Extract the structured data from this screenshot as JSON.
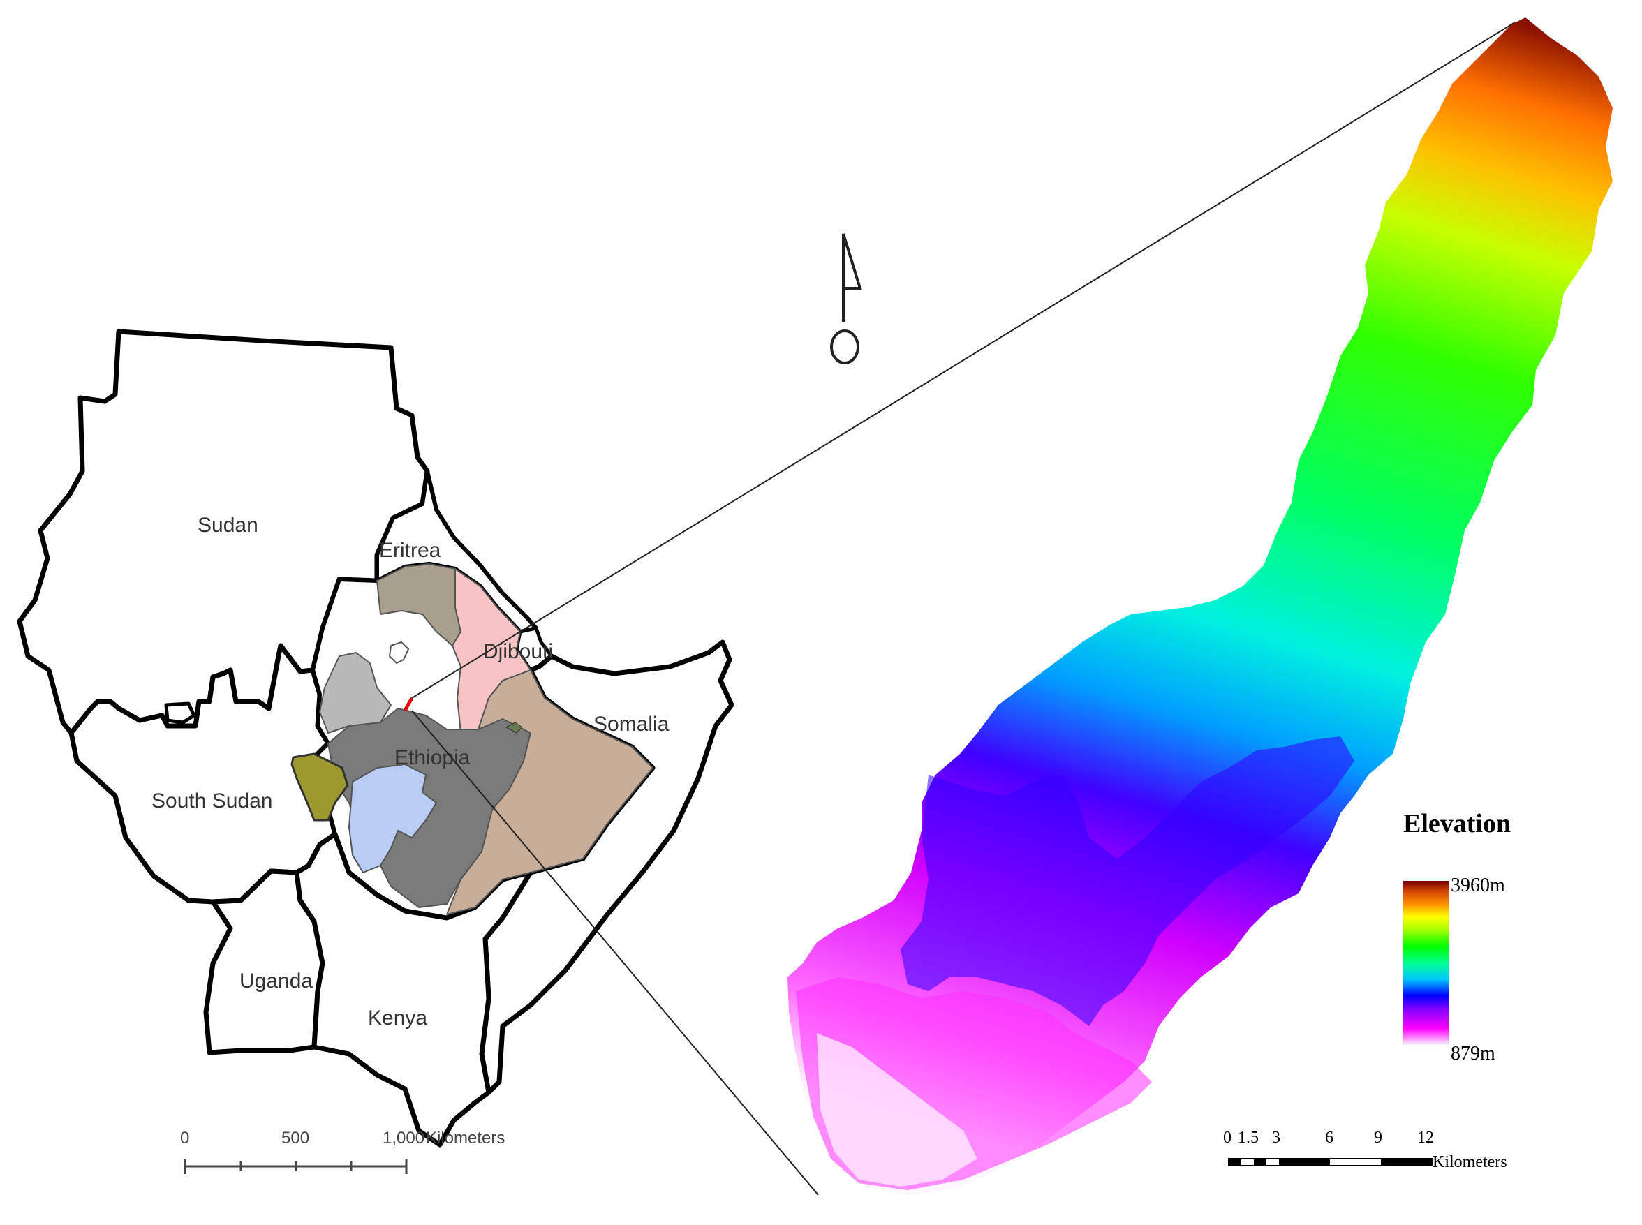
{
  "regional_map": {
    "countries": [
      {
        "id": "sudan",
        "label": "Sudan"
      },
      {
        "id": "eritrea",
        "label": "Eritrea"
      },
      {
        "id": "djibouti",
        "label": "Djibouti"
      },
      {
        "id": "somalia",
        "label": "Somalia"
      },
      {
        "id": "ethiopia",
        "label": "Ethiopia"
      },
      {
        "id": "south-sudan",
        "label": "South Sudan"
      },
      {
        "id": "uganda",
        "label": "Uganda"
      },
      {
        "id": "kenya",
        "label": "Kenya"
      }
    ],
    "scale_bar": {
      "ticks": [
        "0",
        "500",
        "1,000"
      ],
      "unit": "Kilometers"
    }
  },
  "elevation_map": {
    "legend": {
      "title": "Elevation",
      "max_label": "3960m",
      "min_label": "879m",
      "max_m": 3960,
      "min_m": 879
    },
    "scale_bar": {
      "ticks": [
        "0",
        "1.5",
        "3",
        "6",
        "9",
        "12"
      ],
      "unit": "Kilometers"
    },
    "colors": {
      "ramp": [
        "#f8f0ff",
        "#ff00ff",
        "#8000ff",
        "#0000ff",
        "#00c8ff",
        "#00ffa0",
        "#00ff00",
        "#a0ff00",
        "#ffff00",
        "#ff9000",
        "#d04000",
        "#700000"
      ]
    }
  },
  "colors": {
    "region_taupe": "#a89f8e",
    "region_pink": "#f7c4c6",
    "region_lightgray": "#b9b9b9",
    "region_darkgray": "#7a7a7a",
    "region_olive": "#9c9a2e",
    "region_lightblue": "#b8ccf4",
    "region_tan": "#c8ad98",
    "study_area_marker": "#e00000"
  }
}
